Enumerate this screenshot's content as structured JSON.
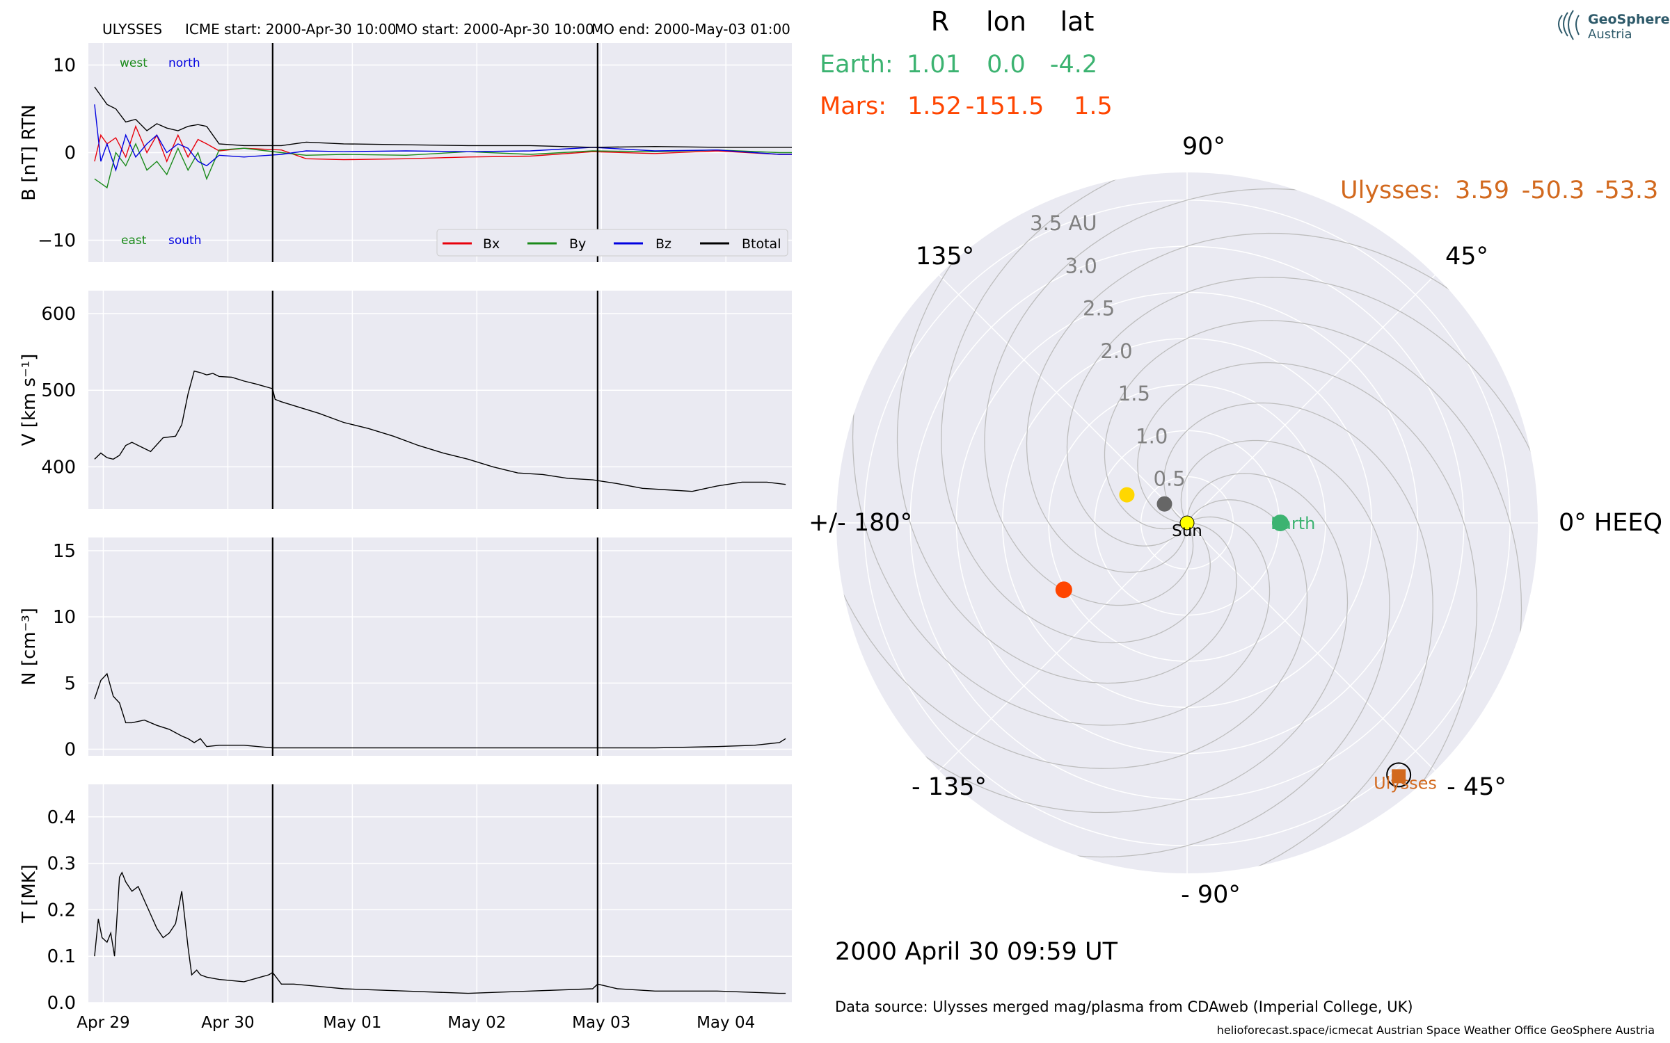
{
  "figure": {
    "spacecraft": "ULYSSES",
    "icme_start": "ICME start: 2000-Apr-30 10:00",
    "mo_start": "MO start: 2000-Apr-30 10:00",
    "mo_end": "MO end: 2000-May-03 01:00",
    "datetime_label": "2000 April 30  09:59 UT",
    "data_source": "Data source: Ulysses merged mag/plasma from CDAweb (Imperial College, UK)",
    "footer": "helioforecast.space/icmecat   Austrian Space Weather Office   GeoSphere Austria",
    "logo_name": "GeoSphere",
    "logo_sub": "Austria"
  },
  "colors": {
    "panel_bg": "#eaeaf2",
    "grid": "#ffffff",
    "bx": "#e8000b",
    "by": "#1a8a1a",
    "bz": "#0000e0",
    "btotal": "#000000",
    "earth": "#3cb371",
    "mars": "#ff4500",
    "ulysses": "#d2691e",
    "venus": "#ffd700",
    "mercury": "#666666",
    "sun": "#ffff00",
    "rlabels": "#808080",
    "logo": "#2e5a6a"
  },
  "chart_data": [
    {
      "type": "line",
      "ylabel": "B [nT] RTN",
      "yticks": [
        "10",
        "0",
        "−10"
      ],
      "ylim": [
        -12.5,
        12.5
      ],
      "annotations": {
        "west": "west",
        "north": "north",
        "east": "east",
        "south": "south"
      },
      "legend": {
        "entries": [
          "Bx",
          "By",
          "Bz",
          "Btotal"
        ],
        "placement": "lower-right"
      },
      "series": [
        {
          "name": "Bx",
          "x": [
            0,
            0.05,
            0.1,
            0.17,
            0.25,
            0.33,
            0.42,
            0.5,
            0.58,
            0.67,
            0.75,
            0.83,
            0.9,
            1.0,
            1.2,
            1.5,
            1.7,
            2.0,
            2.5,
            3.0,
            3.5,
            4.0,
            4.5,
            5.0,
            5.5,
            5.6
          ],
          "y": [
            -1,
            2,
            1,
            1.7,
            -0.5,
            3,
            0,
            2,
            -1,
            2,
            -0.5,
            1.5,
            1,
            0.2,
            0.5,
            0.3,
            -0.7,
            -0.8,
            -0.7,
            -0.5,
            -0.4,
            0.1,
            -0.1,
            0.2,
            -0.2,
            -0.2
          ]
        },
        {
          "name": "By",
          "x": [
            0,
            0.05,
            0.1,
            0.17,
            0.25,
            0.33,
            0.42,
            0.5,
            0.58,
            0.67,
            0.75,
            0.83,
            0.9,
            1.0,
            1.2,
            1.5,
            1.7,
            2.0,
            2.5,
            3.0,
            3.5,
            4.0,
            4.5,
            5.0,
            5.5,
            5.6
          ],
          "y": [
            -3,
            -3.5,
            -4,
            0,
            -1.5,
            1,
            -2,
            -1,
            -2.5,
            0.5,
            -2,
            0,
            -3,
            0.3,
            0.5,
            0,
            -0.3,
            -0.2,
            -0.3,
            0.1,
            -0.2,
            0.2,
            0.1,
            0.3,
            0,
            0
          ]
        },
        {
          "name": "Bz",
          "x": [
            0,
            0.05,
            0.1,
            0.17,
            0.25,
            0.33,
            0.42,
            0.5,
            0.58,
            0.67,
            0.75,
            0.83,
            0.9,
            1.0,
            1.2,
            1.5,
            1.7,
            2.0,
            2.5,
            3.0,
            3.5,
            4.0,
            4.5,
            5.0,
            5.5,
            5.6
          ],
          "y": [
            5.5,
            -1,
            1,
            -2,
            2,
            -0.5,
            1,
            2,
            0,
            1,
            0.5,
            -1,
            -1.5,
            -0.3,
            -0.5,
            -0.2,
            0.2,
            0.1,
            0.2,
            0.1,
            0.2,
            0.6,
            0.2,
            0.3,
            -0.2,
            -0.2
          ]
        },
        {
          "name": "Btotal",
          "x": [
            0,
            0.05,
            0.1,
            0.17,
            0.25,
            0.33,
            0.42,
            0.5,
            0.58,
            0.67,
            0.75,
            0.83,
            0.9,
            1.0,
            1.2,
            1.5,
            1.7,
            2.0,
            2.5,
            3.0,
            3.5,
            4.0,
            4.5,
            5.0,
            5.5,
            5.6
          ],
          "y": [
            7.5,
            6.5,
            5.5,
            5,
            3.5,
            3.8,
            2.5,
            3.3,
            2.8,
            2.5,
            3,
            3.2,
            3,
            1,
            0.8,
            0.8,
            1.2,
            1.0,
            0.9,
            0.8,
            0.8,
            0.6,
            0.7,
            0.6,
            0.6,
            0.6
          ]
        }
      ],
      "vlines": [
        1.43,
        4.04
      ]
    },
    {
      "type": "line",
      "ylabel": "V [km s⁻¹]",
      "yticks": [
        "600",
        "500",
        "400"
      ],
      "ylim": [
        345,
        630
      ],
      "series": [
        {
          "name": "V",
          "x": [
            0,
            0.05,
            0.1,
            0.15,
            0.2,
            0.25,
            0.3,
            0.35,
            0.45,
            0.55,
            0.65,
            0.7,
            0.75,
            0.8,
            0.85,
            0.9,
            0.95,
            1.0,
            1.1,
            1.2,
            1.3,
            1.43,
            1.45,
            1.5,
            1.6,
            1.8,
            2.0,
            2.2,
            2.4,
            2.6,
            2.8,
            3.0,
            3.2,
            3.4,
            3.6,
            3.8,
            4.0,
            4.2,
            4.4,
            4.6,
            4.8,
            5.0,
            5.2,
            5.4,
            5.55
          ],
          "y": [
            410,
            418,
            412,
            410,
            415,
            428,
            432,
            428,
            420,
            438,
            440,
            455,
            495,
            525,
            523,
            520,
            522,
            518,
            517,
            512,
            508,
            502,
            488,
            485,
            480,
            470,
            458,
            450,
            440,
            428,
            418,
            410,
            400,
            392,
            390,
            385,
            383,
            378,
            372,
            370,
            368,
            375,
            380,
            380,
            377
          ]
        }
      ],
      "vlines": [
        1.43,
        4.04
      ]
    },
    {
      "type": "line",
      "ylabel": "N [cm⁻³]",
      "yticks": [
        "15",
        "10",
        "5",
        "0"
      ],
      "ylim": [
        -0.5,
        16
      ],
      "series": [
        {
          "name": "N",
          "x": [
            0,
            0.05,
            0.1,
            0.15,
            0.2,
            0.25,
            0.3,
            0.4,
            0.5,
            0.6,
            0.7,
            0.75,
            0.8,
            0.85,
            0.9,
            1.0,
            1.2,
            1.43,
            1.6,
            2.0,
            2.5,
            3.0,
            3.5,
            4.0,
            4.5,
            5.0,
            5.3,
            5.5,
            5.55
          ],
          "y": [
            3.8,
            5.2,
            5.7,
            4,
            3.5,
            2,
            2,
            2.2,
            1.8,
            1.5,
            1,
            0.8,
            0.5,
            0.8,
            0.2,
            0.3,
            0.3,
            0.1,
            0.1,
            0.1,
            0.1,
            0.1,
            0.1,
            0.1,
            0.1,
            0.2,
            0.3,
            0.5,
            0.8
          ]
        }
      ],
      "vlines": [
        1.43,
        4.04
      ]
    },
    {
      "type": "line",
      "ylabel": "T [MK]",
      "yticks": [
        "0.4",
        "0.3",
        "0.2",
        "0.1",
        "0.0"
      ],
      "ylim": [
        0,
        0.47
      ],
      "xticks": [
        {
          "value": 0.07,
          "label": "Apr 29"
        },
        {
          "value": 1.07,
          "label": "Apr 30"
        },
        {
          "value": 2.07,
          "label": "May 01"
        },
        {
          "value": 3.07,
          "label": "May 02"
        },
        {
          "value": 4.07,
          "label": "May 03"
        },
        {
          "value": 5.07,
          "label": "May 04"
        }
      ],
      "series": [
        {
          "name": "T",
          "x": [
            0,
            0.03,
            0.06,
            0.1,
            0.13,
            0.16,
            0.2,
            0.22,
            0.25,
            0.3,
            0.35,
            0.4,
            0.45,
            0.5,
            0.55,
            0.6,
            0.65,
            0.7,
            0.75,
            0.78,
            0.82,
            0.85,
            0.9,
            1.0,
            1.2,
            1.4,
            1.43,
            1.5,
            1.6,
            1.8,
            2.0,
            2.5,
            3.0,
            3.5,
            4.0,
            4.04,
            4.2,
            4.5,
            5.0,
            5.5,
            5.55
          ],
          "y": [
            0.1,
            0.18,
            0.14,
            0.13,
            0.15,
            0.1,
            0.27,
            0.28,
            0.26,
            0.24,
            0.25,
            0.22,
            0.19,
            0.16,
            0.14,
            0.15,
            0.17,
            0.24,
            0.12,
            0.06,
            0.07,
            0.06,
            0.055,
            0.05,
            0.045,
            0.06,
            0.065,
            0.04,
            0.04,
            0.035,
            0.03,
            0.025,
            0.02,
            0.025,
            0.03,
            0.04,
            0.03,
            0.025,
            0.025,
            0.02,
            0.02
          ]
        }
      ],
      "vlines": [
        1.43,
        4.04
      ]
    },
    {
      "type": "scatter",
      "subtype": "polar",
      "table_header": [
        "R",
        "lon",
        "lat"
      ],
      "bodies": [
        {
          "name": "Earth:",
          "R": "1.01",
          "lon": "0.0",
          "lat": "-4.2",
          "r": 1.01,
          "lon_deg": 0
        },
        {
          "name": "Mars:",
          "R": "1.52",
          "lon": "-151.5",
          "lat": "1.5",
          "r": 1.52,
          "lon_deg": -151.5
        },
        {
          "name": "Ulysses:",
          "R": "3.59",
          "lon": "-50.3",
          "lat": "-53.3",
          "r": 3.59,
          "lon_deg": -50.3
        }
      ],
      "extra_markers": [
        {
          "name": "venus",
          "r": 0.72,
          "lon_deg": 155
        },
        {
          "name": "mercury",
          "r": 0.32,
          "lon_deg": 140
        }
      ],
      "point_labels": {
        "sun": "Sun",
        "earth": "Earth",
        "ulysses": "Ulysses"
      },
      "angle_labels": {
        "a90": "90°",
        "a45": "45°",
        "a0": "0° HEEQ",
        "am45": "- 45°",
        "am90": "- 90°",
        "am135": "- 135°",
        "a180": "+/- 180°",
        "a135": "135°"
      },
      "rlabels": [
        "0.5",
        "1.0",
        "1.5",
        "2.0",
        "2.5",
        "3.0",
        "3.5 AU"
      ],
      "rmax": 3.8
    }
  ]
}
